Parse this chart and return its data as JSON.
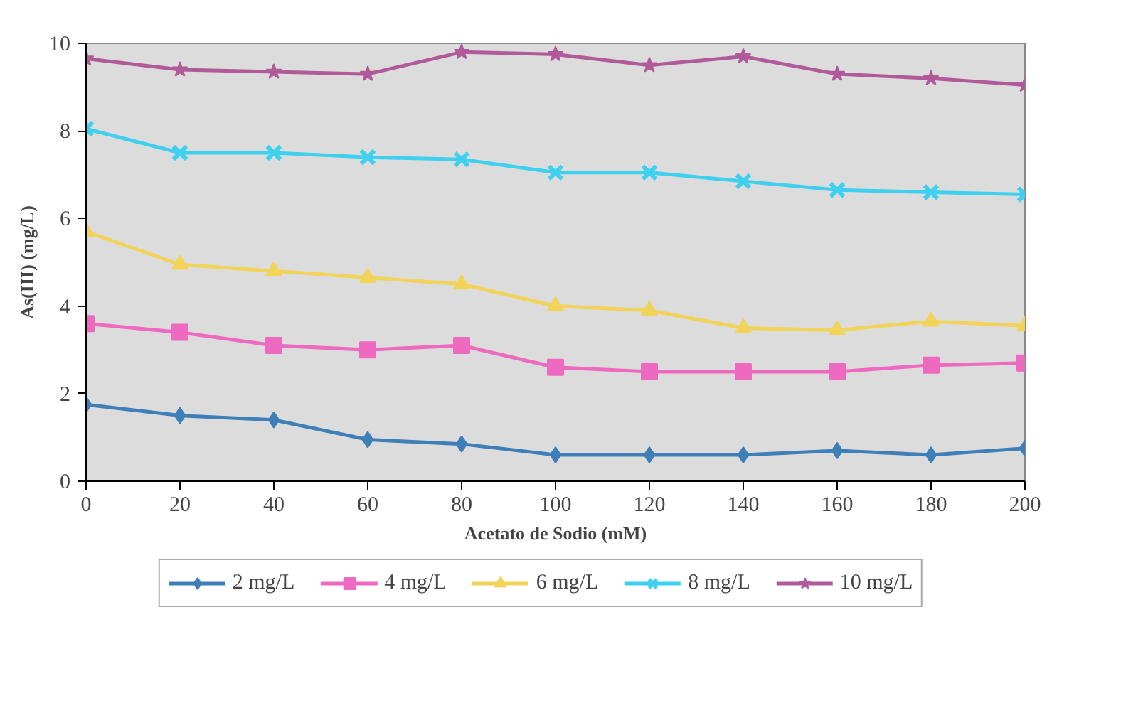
{
  "chart_data": {
    "type": "line",
    "xlabel": "Acetato de Sodio (mM)",
    "ylabel": "As(III) (mg/L)",
    "x": [
      0,
      20,
      40,
      60,
      80,
      100,
      120,
      140,
      160,
      180,
      200
    ],
    "xlim": [
      0,
      200
    ],
    "xticks": [
      0,
      20,
      40,
      60,
      80,
      100,
      120,
      140,
      160,
      180,
      200
    ],
    "ylim": [
      0,
      10
    ],
    "yticks": [
      0,
      2,
      4,
      6,
      8,
      10
    ],
    "grid": false,
    "legend": "bottom",
    "line_style": "solid",
    "series": [
      {
        "name": "2 mg/L",
        "color": "#3f7fb8",
        "marker": "diamond",
        "values": [
          1.75,
          1.5,
          1.4,
          0.95,
          0.85,
          0.6,
          0.6,
          0.6,
          0.7,
          0.6,
          0.75
        ]
      },
      {
        "name": "4 mg/L",
        "color": "#ee6ac0",
        "marker": "square",
        "values": [
          3.6,
          3.4,
          3.1,
          3.0,
          3.1,
          2.6,
          2.5,
          2.5,
          2.5,
          2.65,
          2.7
        ]
      },
      {
        "name": "6 mg/L",
        "color": "#f2d35a",
        "marker": "triangle",
        "values": [
          5.7,
          4.95,
          4.8,
          4.65,
          4.5,
          4.0,
          3.9,
          3.5,
          3.45,
          3.65,
          3.55
        ]
      },
      {
        "name": "8 mg/L",
        "color": "#3fd0f0",
        "marker": "cross",
        "values": [
          8.05,
          7.5,
          7.5,
          7.4,
          7.35,
          7.05,
          7.05,
          6.85,
          6.65,
          6.6,
          6.55
        ]
      },
      {
        "name": "10 mg/L",
        "color": "#b05a9a",
        "marker": "star",
        "values": [
          9.65,
          9.4,
          9.35,
          9.3,
          9.8,
          9.75,
          9.5,
          9.7,
          9.3,
          9.2,
          9.05
        ]
      }
    ]
  }
}
